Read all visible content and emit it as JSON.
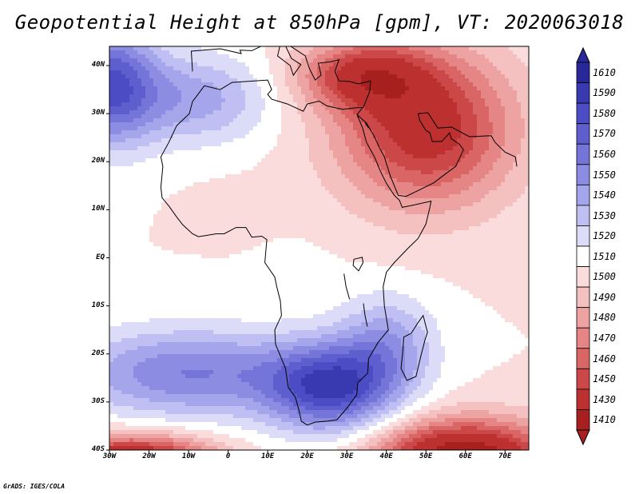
{
  "title": "Geopotential Height at 850hPa [gpm], VT: 2020063018",
  "credit": "GrADS: IGES/COLA",
  "lat_labels": [
    "40N",
    "30N",
    "20N",
    "10N",
    "EQ",
    "10S",
    "20S",
    "30S",
    "40S"
  ],
  "lat_values": [
    40,
    30,
    20,
    10,
    0,
    -10,
    -20,
    -30,
    -40
  ],
  "lon_labels": [
    "30W",
    "20W",
    "10W",
    "0",
    "10E",
    "20E",
    "30E",
    "40E",
    "50E",
    "60E",
    "70E"
  ],
  "lon_values": [
    -30,
    -20,
    -10,
    0,
    10,
    20,
    30,
    40,
    50,
    60,
    70
  ],
  "extent": {
    "lon_min": -30,
    "lon_max": 76,
    "lat_min": -40,
    "lat_max": 44
  },
  "colorbar": {
    "levels": [
      "1610",
      "1590",
      "1580",
      "1570",
      "1560",
      "1550",
      "1540",
      "1530",
      "1520",
      "1510",
      "1500",
      "1490",
      "1480",
      "1470",
      "1460",
      "1450",
      "1430",
      "1410"
    ],
    "colors": [
      "#28289b",
      "#3a3ab0",
      "#4c4cc4",
      "#5e5ecf",
      "#7474d9",
      "#8c8ce2",
      "#a5a5eb",
      "#bfbff3",
      "#dcdcf9",
      "#ffffff",
      "#fadcdc",
      "#f5c0c0",
      "#eea3a3",
      "#e58585",
      "#d96565",
      "#cc4848",
      "#bd3030",
      "#a81f1f"
    ]
  },
  "field_blobs": [
    {
      "name": "atlas-high",
      "lon": -8,
      "lat": 33,
      "rlon": 18,
      "rlat": 9,
      "v": 1545
    },
    {
      "name": "nw-corner-high",
      "lon": -30,
      "lat": 36,
      "rlon": 12,
      "rlat": 12,
      "v": 1580
    },
    {
      "name": "southern-africa-high",
      "lon": 26,
      "lat": -27,
      "rlon": 16,
      "rlat": 9,
      "v": 1585
    },
    {
      "name": "south-atlantic-high",
      "lon": -10,
      "lat": -24,
      "rlon": 30,
      "rlat": 9,
      "v": 1560
    },
    {
      "name": "sw-indian-high",
      "lon": 40,
      "lat": -18,
      "rlon": 12,
      "rlat": 10,
      "v": 1545
    },
    {
      "name": "arabian-low",
      "lon": 50,
      "lat": 27,
      "rlon": 22,
      "rlat": 16,
      "v": 1440
    },
    {
      "name": "middle-east-low",
      "lon": 34,
      "lat": 38,
      "rlon": 16,
      "rlat": 7,
      "v": 1455
    },
    {
      "name": "se-storm-low",
      "lon": 60,
      "lat": -42,
      "rlon": 22,
      "rlat": 8,
      "v": 1410
    },
    {
      "name": "sw-storm-low",
      "lon": -24,
      "lat": -42,
      "rlon": 20,
      "rlat": 5,
      "v": 1425
    },
    {
      "name": "west-africa-weak",
      "lon": 2,
      "lat": 12,
      "rlon": 14,
      "rlat": 6,
      "v": 1508
    },
    {
      "name": "congo-weak",
      "lon": 20,
      "lat": -2,
      "rlon": 10,
      "rlat": 8,
      "v": 1512
    }
  ]
}
